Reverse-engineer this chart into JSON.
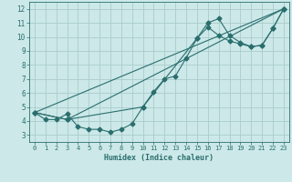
{
  "xlabel": "Humidex (Indice chaleur)",
  "ylabel": "",
  "xlim": [
    -0.5,
    23.5
  ],
  "ylim": [
    2.5,
    12.5
  ],
  "xticks": [
    0,
    1,
    2,
    3,
    4,
    5,
    6,
    7,
    8,
    9,
    10,
    11,
    12,
    13,
    14,
    15,
    16,
    17,
    18,
    19,
    20,
    21,
    22,
    23
  ],
  "yticks": [
    3,
    4,
    5,
    6,
    7,
    8,
    9,
    10,
    11,
    12
  ],
  "bg_color": "#cce8e8",
  "grid_color": "#aacccc",
  "line_color": "#2a6e6e",
  "line1_x": [
    0,
    1,
    2,
    3,
    4,
    5,
    6,
    7,
    8,
    9,
    10,
    11,
    12,
    13,
    14,
    15,
    16,
    17,
    18,
    19,
    20,
    21,
    22,
    23
  ],
  "line1_y": [
    4.6,
    4.1,
    4.1,
    4.5,
    3.6,
    3.4,
    3.4,
    3.2,
    3.4,
    3.8,
    5.0,
    6.1,
    7.0,
    7.2,
    8.5,
    9.9,
    11.0,
    11.3,
    10.1,
    9.6,
    9.3,
    9.4,
    10.6,
    12.0
  ],
  "line2_x": [
    0,
    3,
    10,
    15,
    16,
    17,
    18,
    19,
    20,
    21,
    22,
    23
  ],
  "line2_y": [
    4.6,
    4.1,
    5.0,
    9.9,
    10.7,
    10.1,
    9.7,
    9.5,
    9.3,
    9.4,
    10.6,
    12.0
  ],
  "line3_x": [
    0,
    3,
    23
  ],
  "line3_y": [
    4.6,
    4.1,
    12.0
  ],
  "line4_x": [
    0,
    23
  ],
  "line4_y": [
    4.6,
    12.0
  ]
}
